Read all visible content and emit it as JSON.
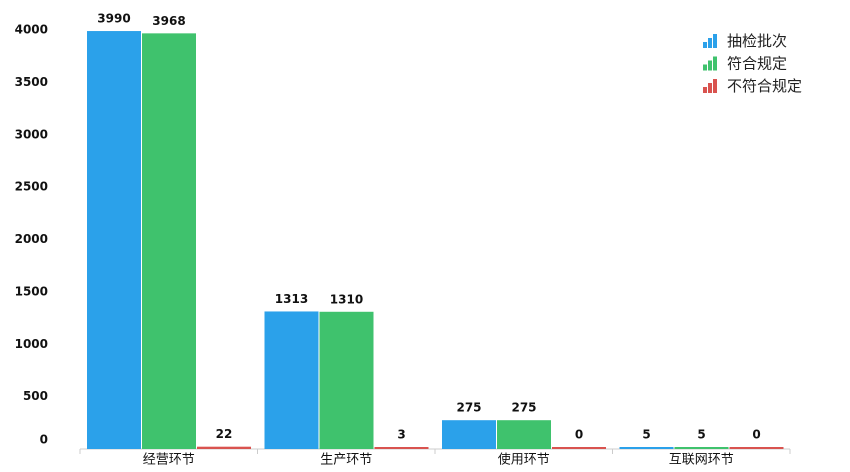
{
  "chart_data": {
    "type": "bar",
    "categories": [
      "经营环节",
      "生产环节",
      "使用环节",
      "互联网环节"
    ],
    "series": [
      {
        "name": "抽检批次",
        "color": "#2ba1ea",
        "values": [
          3990,
          1313,
          275,
          5
        ]
      },
      {
        "name": "符合规定",
        "color": "#3fc26d",
        "values": [
          3968,
          1310,
          275,
          5
        ]
      },
      {
        "name": "不符合规定",
        "color": "#d9534f",
        "values": [
          22,
          3,
          0,
          0
        ]
      }
    ],
    "ylim": [
      0,
      4000
    ],
    "yticks": [
      0,
      500,
      1000,
      1500,
      2000,
      2500,
      3000,
      3500,
      4000
    ],
    "legend": "top-right"
  }
}
